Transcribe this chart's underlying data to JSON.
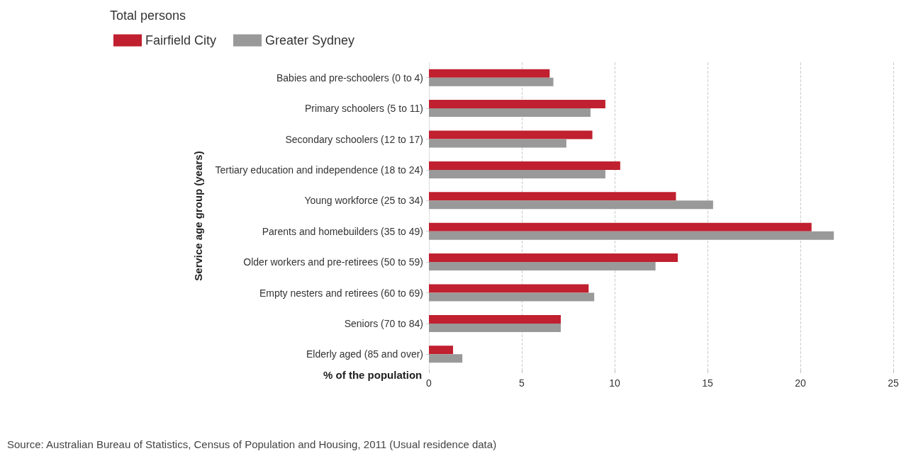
{
  "chart_data": {
    "type": "bar",
    "orientation": "horizontal",
    "legend_title": "Total persons",
    "xlabel": "% of the population",
    "ylabel": "Service age group (years)",
    "categories": [
      "Babies and pre-schoolers (0 to 4)",
      "Primary schoolers (5 to 11)",
      "Secondary schoolers (12 to 17)",
      "Tertiary education and independence (18 to 24)",
      "Young workforce (25 to 34)",
      "Parents and homebuilders (35 to 49)",
      "Older workers and pre-retirees (50 to 59)",
      "Empty nesters and retirees (60 to 69)",
      "Seniors (70 to 84)",
      "Elderly aged (85 and over)"
    ],
    "series": [
      {
        "name": "Fairfield City",
        "color": "#c0202f",
        "values": [
          6.5,
          9.5,
          8.8,
          10.3,
          13.3,
          20.6,
          13.4,
          8.6,
          7.1,
          1.3
        ]
      },
      {
        "name": "Greater Sydney",
        "color": "#999999",
        "values": [
          6.7,
          8.7,
          7.4,
          9.5,
          15.3,
          21.8,
          12.2,
          8.9,
          7.1,
          1.8
        ]
      }
    ],
    "xlim": [
      0,
      25
    ],
    "xticks": [
      0,
      5,
      10,
      15,
      20,
      25
    ],
    "grid": "x",
    "legend": "top left",
    "annotations": [
      "Source: Australian Bureau of Statistics, Census of Population and Housing, 2011 (Usual residence data)"
    ]
  }
}
